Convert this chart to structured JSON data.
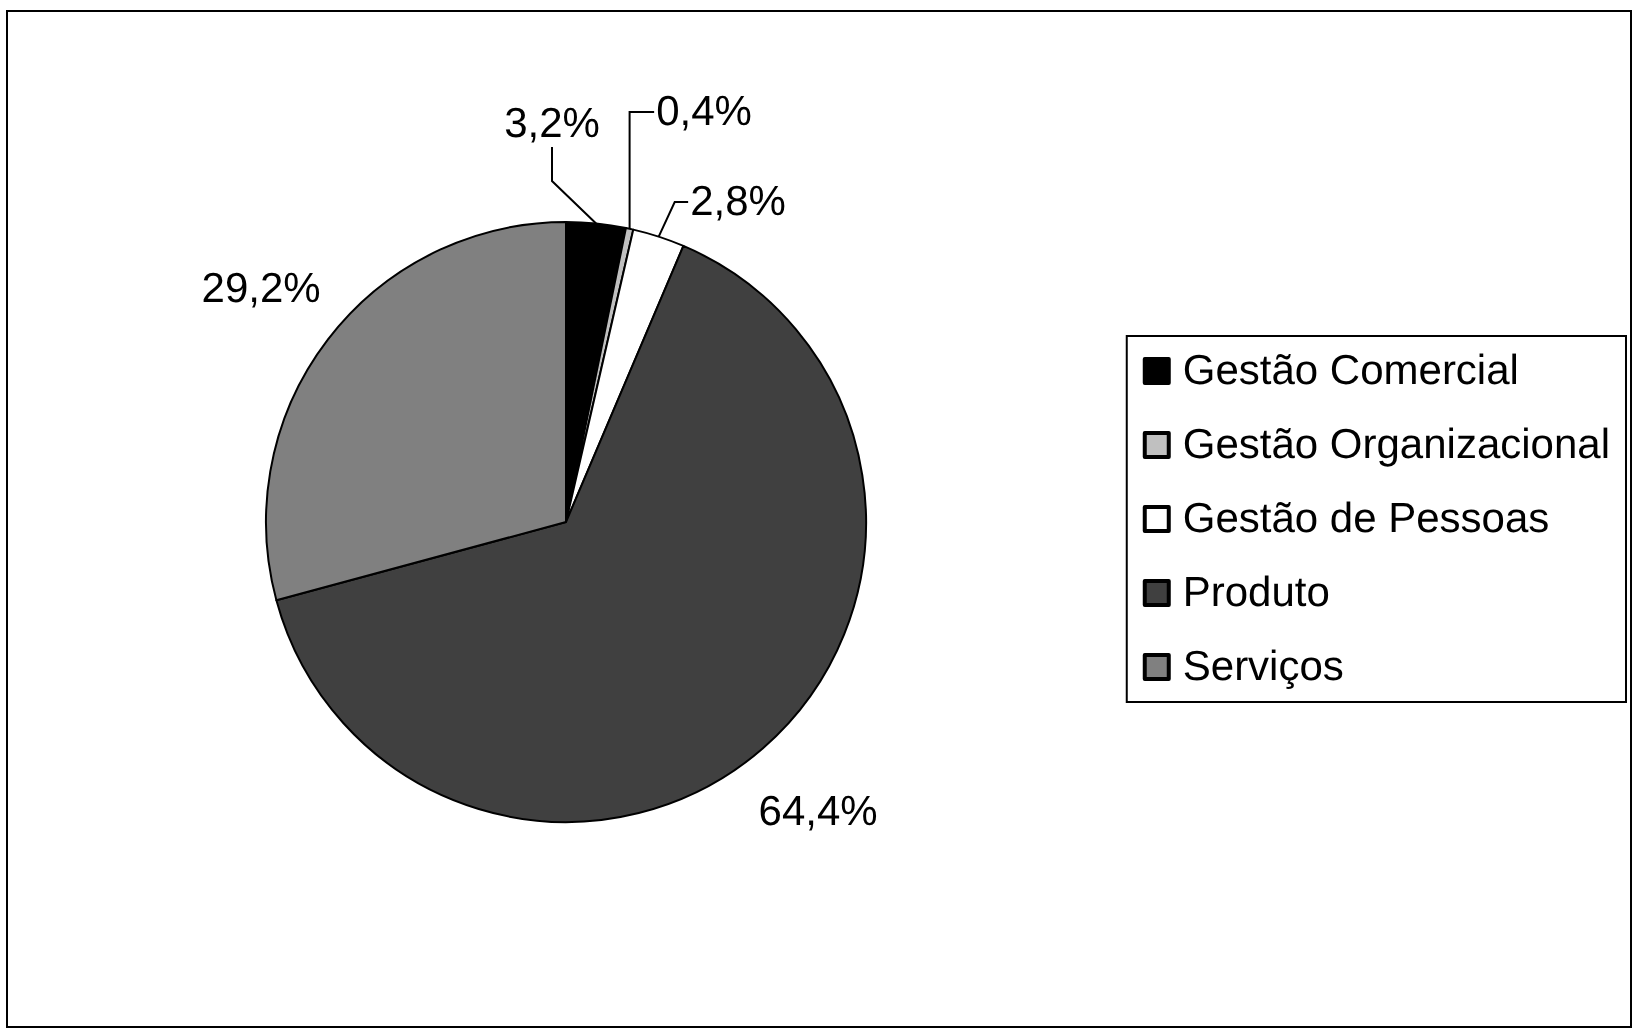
{
  "chart_data": {
    "type": "pie",
    "categories": [
      "Gestão Comercial",
      "Gestão Organizacional",
      "Gestão de Pessoas",
      "Produto",
      "Serviços"
    ],
    "values": [
      3.2,
      0.4,
      2.8,
      64.4,
      29.2
    ],
    "colors": [
      "#000000",
      "#c0c0c0",
      "#ffffff",
      "#404040",
      "#808080"
    ],
    "value_labels": [
      "3,2%",
      "0,4%",
      "2,8%",
      "64,4%",
      "29,2%"
    ],
    "legend": "right"
  }
}
